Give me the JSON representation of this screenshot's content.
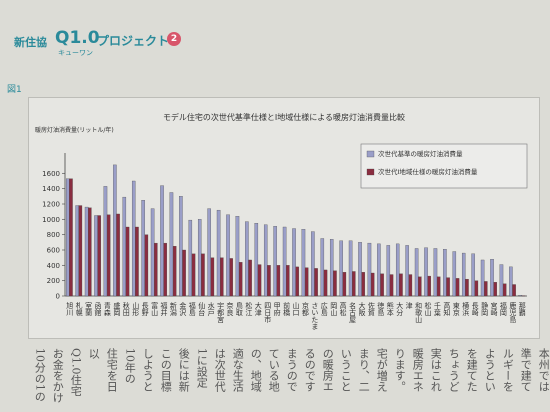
{
  "header": {
    "org": "新住協",
    "brand": "Q1.0",
    "brand_sub": "キューワン",
    "project": "プロジェクト",
    "badge": "2"
  },
  "figure_label": "図1",
  "chart_data": {
    "type": "bar",
    "title": "モデル住宅の次世代基準仕様とⅠ地域仕様による暖房灯油消費量比較",
    "ylabel": "暖房灯油消費量(リットル/年)",
    "ylim": [
      0,
      1800
    ],
    "yticks": [
      0,
      200,
      400,
      600,
      800,
      1000,
      1200,
      1400,
      1600
    ],
    "grid": false,
    "legend_position": "top-right",
    "categories": [
      "旭川",
      "札幌",
      "室蘭",
      "函館",
      "青森",
      "盛岡",
      "秋田",
      "山形",
      "長野",
      "富山",
      "福井",
      "新潟",
      "金沢",
      "福島",
      "仙台",
      "水戸",
      "宇都宮",
      "奈良",
      "鳥取",
      "松江",
      "大津",
      "四日市",
      "甲府",
      "前橋",
      "山口",
      "京都",
      "さいたま",
      "広島",
      "岡山",
      "高松",
      "名古屋",
      "大阪",
      "佐賀",
      "徳島",
      "熊本",
      "大分",
      "津",
      "和歌山",
      "松山",
      "千葉",
      "高知",
      "東京",
      "横浜",
      "長崎",
      "静岡",
      "宮崎",
      "福岡",
      "鹿児島",
      "那覇"
    ],
    "series": [
      {
        "name": "次世代基準の暖房灯油消費量",
        "color": "#9a9ec8",
        "values": [
          1530,
          1180,
          1160,
          1050,
          1430,
          1710,
          1290,
          1500,
          1250,
          1140,
          1440,
          1350,
          1300,
          990,
          1000,
          1140,
          1120,
          1060,
          1040,
          970,
          950,
          930,
          910,
          900,
          880,
          870,
          840,
          750,
          740,
          720,
          720,
          700,
          690,
          680,
          660,
          680,
          660,
          620,
          630,
          620,
          610,
          580,
          560,
          550,
          470,
          480,
          410,
          380,
          10
        ]
      },
      {
        "name": "次世代Ⅰ地域仕様の暖房灯油消費量",
        "color": "#8a2d40",
        "values": [
          1530,
          1180,
          1150,
          1050,
          1060,
          1070,
          900,
          900,
          800,
          690,
          690,
          650,
          600,
          550,
          550,
          500,
          500,
          490,
          440,
          470,
          410,
          400,
          400,
          400,
          380,
          370,
          360,
          340,
          330,
          310,
          320,
          310,
          300,
          290,
          280,
          290,
          280,
          250,
          260,
          250,
          240,
          230,
          220,
          200,
          190,
          180,
          160,
          150,
          5
        ]
      }
    ]
  },
  "body_columns": [
    "本州では",
    "準で建て",
    "ルギーを",
    "ようとい",
    "を建てた",
    "ちょうど",
    "実はこれ",
    "暖房エネ",
    "ります。",
    "宅が増え",
    "まり、二",
    "いうこと",
    "の暖房エ",
    "るのです",
    "まうので",
    "ている地",
    "の、地域",
    "適な生活",
    "は次世代",
    "1に設定",
    "後には新",
    "この目標",
    "しようと",
    "10年の",
    "住宅を日",
    "以",
    "Q1.0住宅",
    "お金をかけ",
    "10分の1の"
  ]
}
